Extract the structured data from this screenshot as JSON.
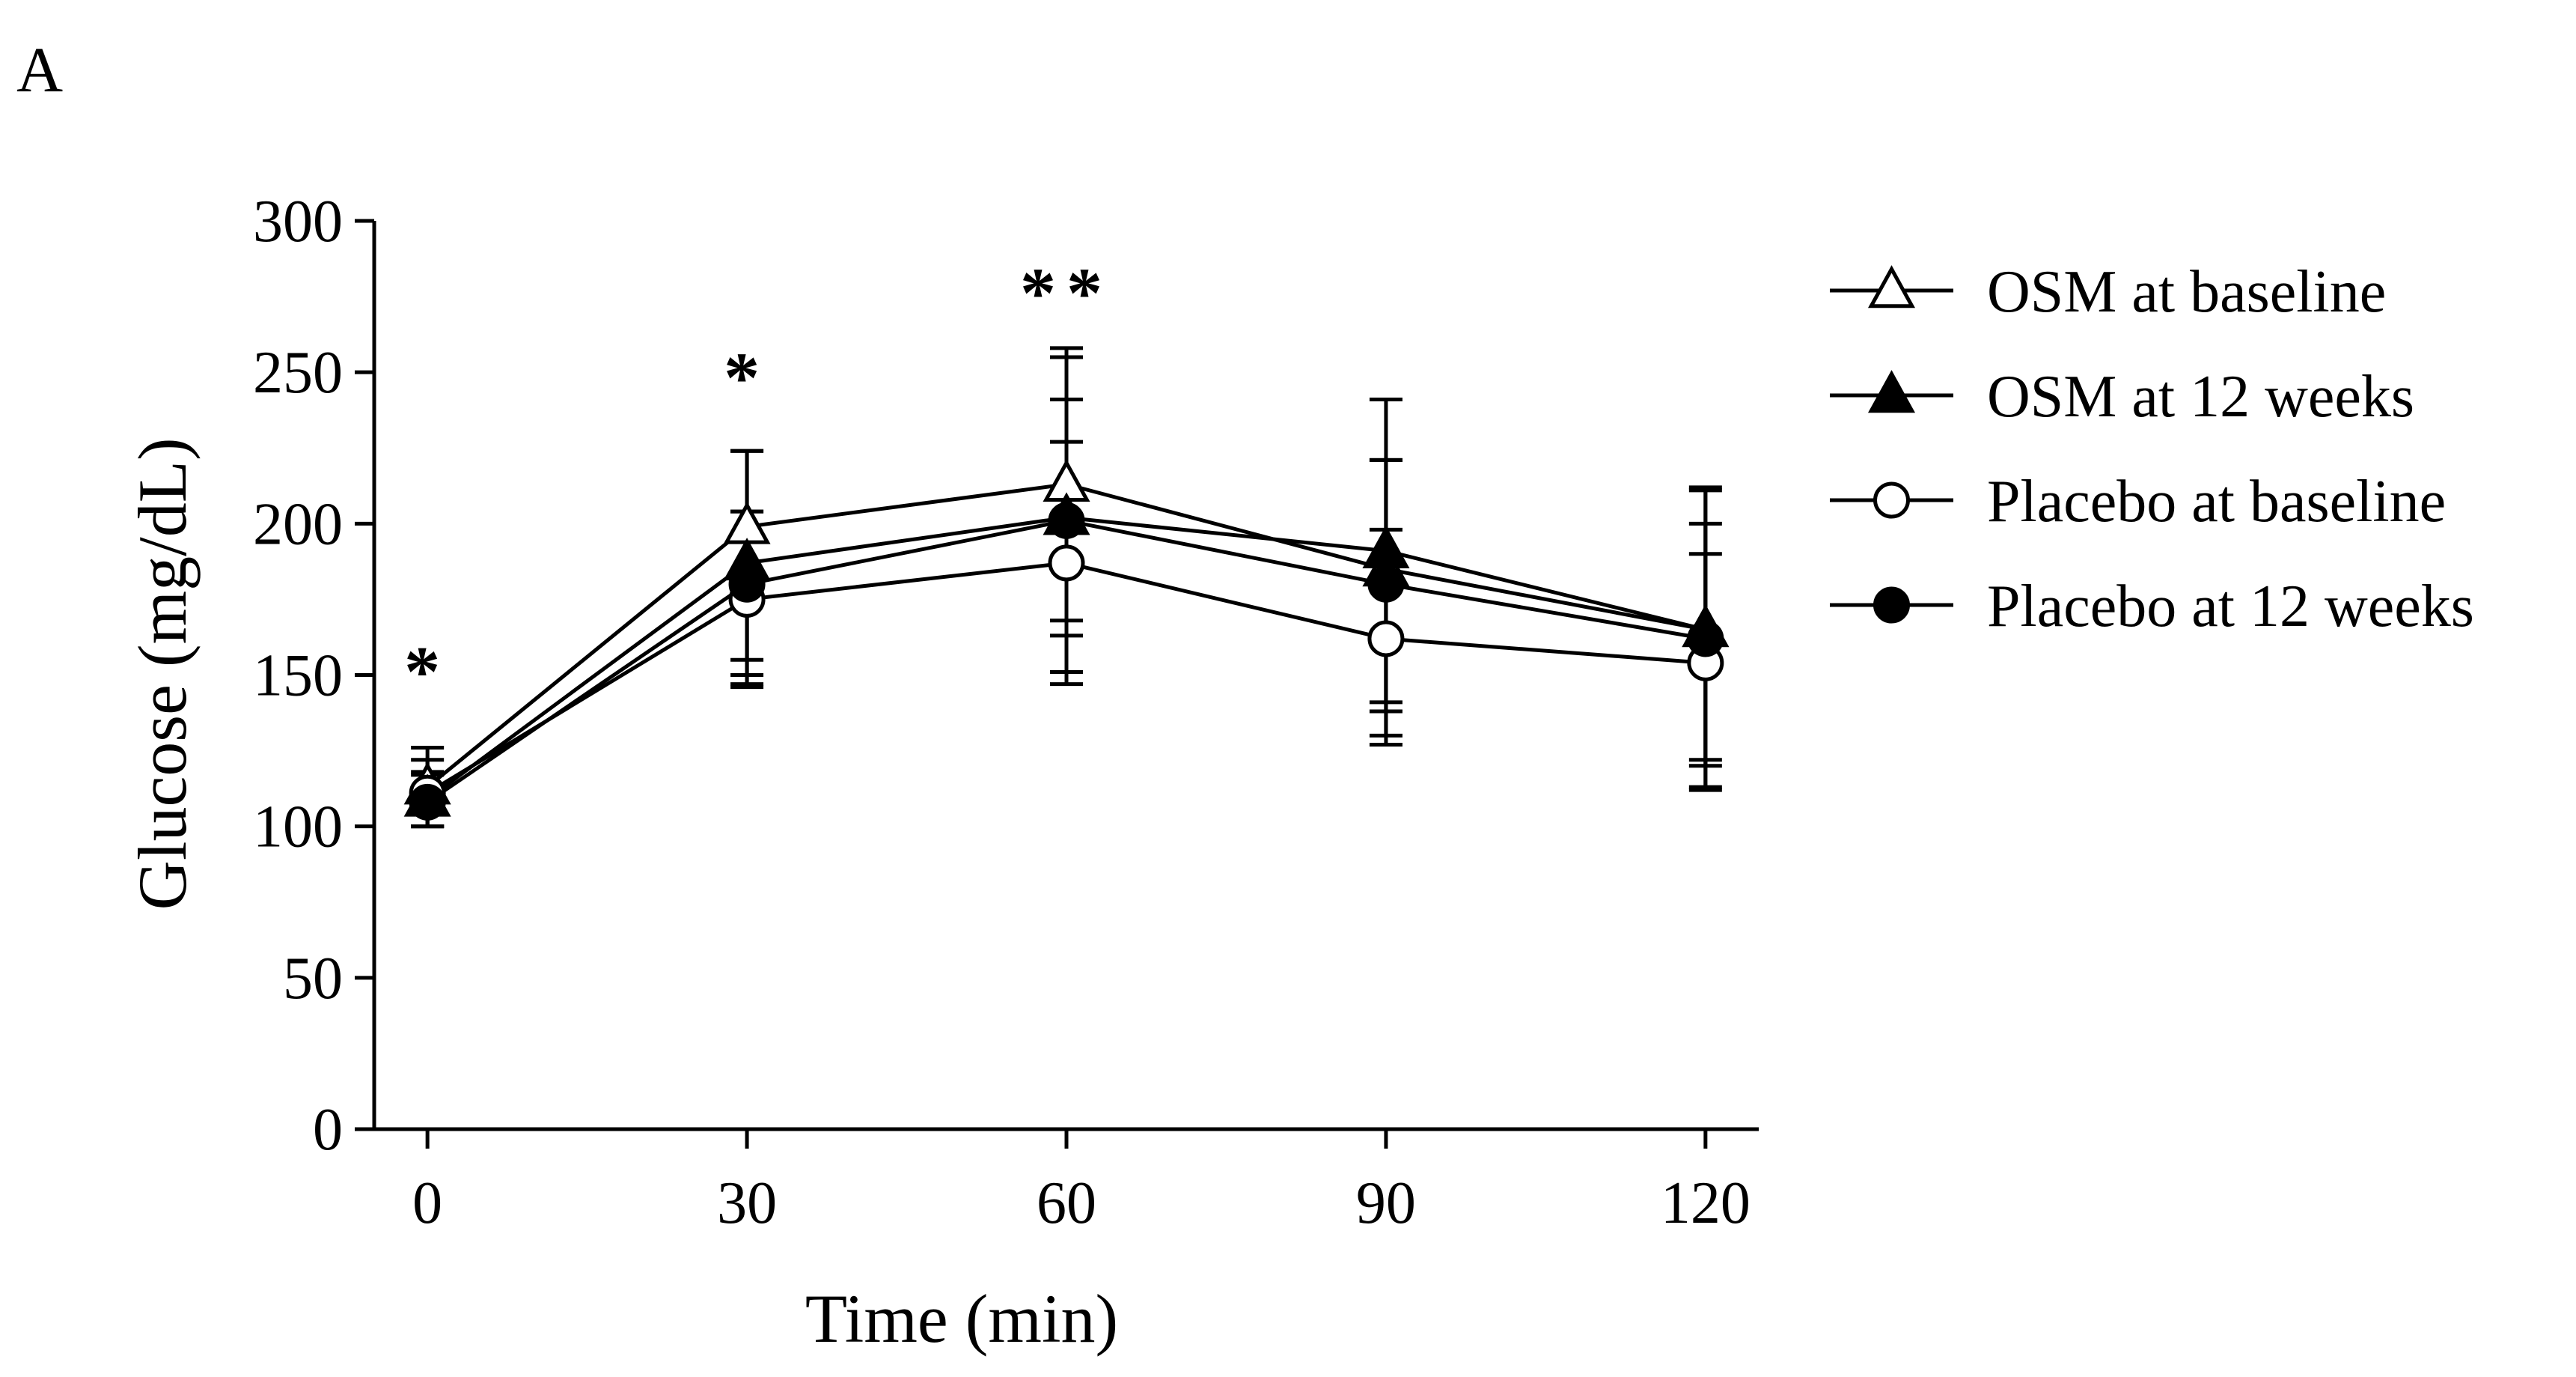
{
  "panel_label": "A",
  "chart_data": {
    "type": "line",
    "title": "",
    "xlabel": "Time (min)",
    "ylabel": "Glucose (mg/dL)",
    "x": [
      0,
      30,
      60,
      90,
      120
    ],
    "x_tick_labels": [
      "0",
      "30",
      "60",
      "90",
      "120"
    ],
    "y_ticks": [
      0,
      50,
      100,
      150,
      200,
      250,
      300
    ],
    "y_tick_labels": [
      "0",
      "50",
      "100",
      "150",
      "200",
      "250",
      "300"
    ],
    "xlim": [
      -5,
      125
    ],
    "ylim": [
      0,
      300
    ],
    "grid": false,
    "legend_position": "right",
    "series": [
      {
        "name": "OSM at baseline",
        "marker": "triangle-open",
        "values": [
          113,
          199,
          213,
          185,
          165
        ],
        "error_upper": [
          126,
          204,
          258,
          221,
          200
        ],
        "error_lower": [
          100,
          155,
          168,
          138,
          122
        ]
      },
      {
        "name": "OSM at 12 weeks",
        "marker": "triangle-filled",
        "values": [
          109,
          187,
          202,
          191,
          165
        ],
        "error_upper": [
          122,
          224,
          241,
          241,
          211
        ],
        "error_lower": [
          100,
          150,
          163,
          141,
          120
        ]
      },
      {
        "name": "Placebo at baseline",
        "marker": "circle-open",
        "values": [
          111,
          175,
          187,
          162,
          154
        ],
        "error_upper": [
          118,
          204,
          227,
          198,
          190
        ],
        "error_lower": [
          100,
          146,
          147,
          127,
          112
        ]
      },
      {
        "name": "Placebo at 12 weeks",
        "marker": "circle-filled",
        "values": [
          108,
          180,
          201,
          180,
          162
        ],
        "error_upper": [
          117,
          224,
          255,
          221,
          212
        ],
        "error_lower": [
          100,
          147,
          151,
          130,
          113
        ]
      }
    ],
    "annotations": [
      {
        "x": 0,
        "y": 153,
        "text": "*"
      },
      {
        "x": 30,
        "y": 250,
        "text": "*"
      },
      {
        "x": 60,
        "y": 278,
        "text": "**"
      }
    ]
  },
  "colors": {
    "line": "#000000",
    "background": "#ffffff",
    "open_fill": "#ffffff"
  }
}
